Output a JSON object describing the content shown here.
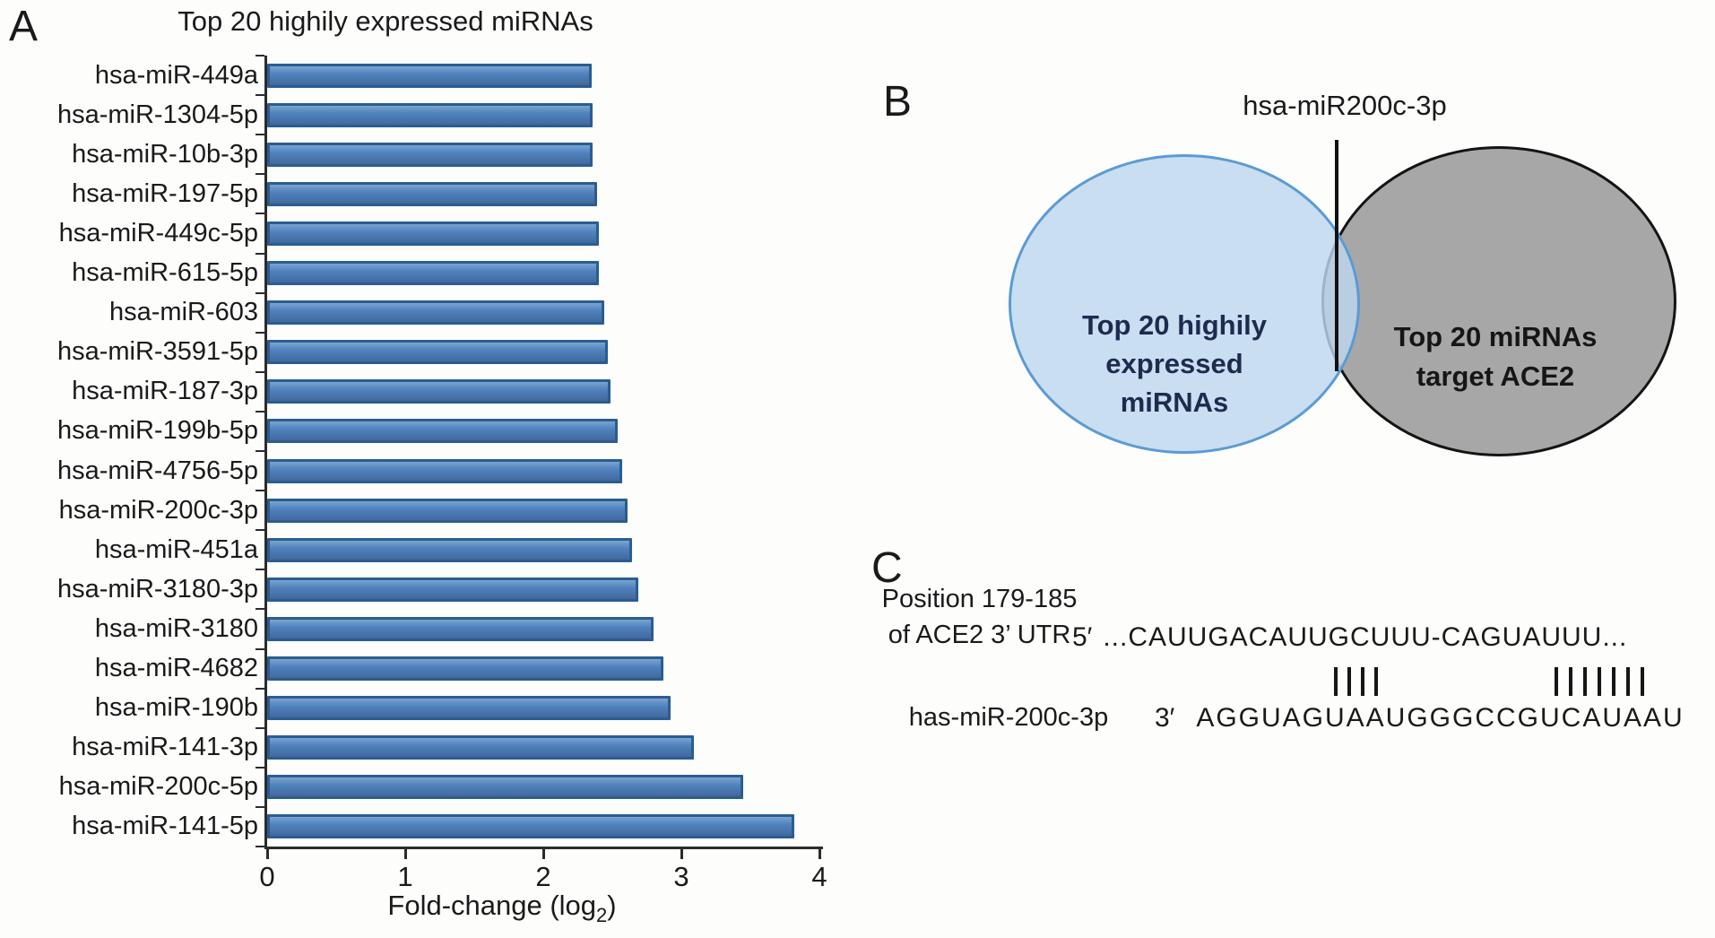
{
  "figure": {
    "panel_a_label": "A",
    "panel_b_label": "B",
    "panel_c_label": "C"
  },
  "chart_data": {
    "type": "bar",
    "orientation": "horizontal",
    "title": "Top 20 highily expressed miRNAs",
    "xlabel": "Fold-change (log2)",
    "xlabel_pre": "Fold-change (log",
    "xlabel_sub": "2",
    "xlabel_post": ")",
    "ylabel": "",
    "xlim": [
      0,
      4
    ],
    "x_ticks": [
      "0",
      "1",
      "2",
      "3",
      "4"
    ],
    "grid": false,
    "bar_color": "#4f81bd",
    "bar_border": "#2a5d91",
    "categories": [
      "hsa-miR-449a",
      "hsa-miR-1304-5p",
      "hsa-miR-10b-3p",
      "hsa-miR-197-5p",
      "hsa-miR-449c-5p",
      "hsa-miR-615-5p",
      "hsa-miR-603",
      "hsa-miR-3591-5p",
      "hsa-miR-187-3p",
      "hsa-miR-199b-5p",
      "hsa-miR-4756-5p",
      "hsa-miR-200c-3p",
      "hsa-miR-451a",
      "hsa-miR-3180-3p",
      "hsa-miR-3180",
      "hsa-miR-4682",
      "hsa-miR-190b",
      "hsa-miR-141-3p",
      "hsa-miR-200c-5p",
      "hsa-miR-141-5p"
    ],
    "values": [
      2.35,
      2.36,
      2.36,
      2.39,
      2.4,
      2.4,
      2.44,
      2.47,
      2.49,
      2.54,
      2.57,
      2.61,
      2.64,
      2.69,
      2.8,
      2.87,
      2.92,
      3.09,
      3.45,
      3.82
    ]
  },
  "venn": {
    "callout_label": "hsa-miR200c-3p",
    "left_circle": {
      "label": "Top 20 highily\nexpressed\nmiRNAs",
      "fill": "#bdd7ee",
      "border": "#5b9bd5"
    },
    "right_circle": {
      "label": "Top 20 miRNAs\ntarget ACE2",
      "fill": "#a7a7a7",
      "border": "#141414"
    }
  },
  "alignment": {
    "position_label_line1": "Position 179-185",
    "position_label_line2": "of ACE2 3’ UTR",
    "five_prime": "5′",
    "target_sequence": "...CAUUGACAUUGCUUU-CAGUAUUU...",
    "three_prime": "3′",
    "mirna_sequence": "AGGUAGUAAUGGGCCGUCAUAAU",
    "mirna_label": "has-miR-200c-3p",
    "match_groups": [
      4,
      7
    ]
  }
}
